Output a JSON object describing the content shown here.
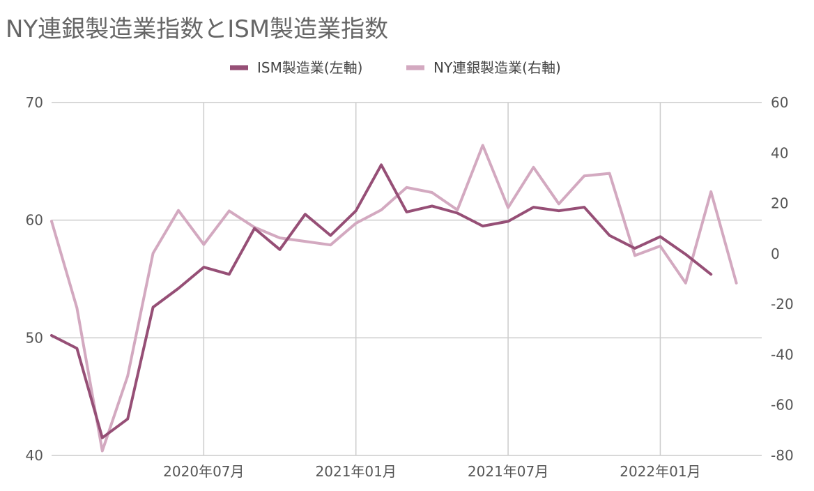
{
  "chart_data": {
    "type": "line",
    "title": "NY連銀製造業指数とISM製造業指数",
    "x_tick_labels": [
      "2020年07月",
      "2021年01月",
      "2021年07月",
      "2022年01月"
    ],
    "x_months": [
      "2020-01",
      "2020-02",
      "2020-03",
      "2020-04",
      "2020-05",
      "2020-06",
      "2020-07",
      "2020-08",
      "2020-09",
      "2020-10",
      "2020-11",
      "2020-12",
      "2021-01",
      "2021-02",
      "2021-03",
      "2021-04",
      "2021-05",
      "2021-06",
      "2021-07",
      "2021-08",
      "2021-09",
      "2021-10",
      "2021-11",
      "2021-12",
      "2022-01",
      "2022-02",
      "2022-03",
      "2022-04",
      "2022-05"
    ],
    "y_left": {
      "ticks": [
        "70",
        "60",
        "50",
        "40"
      ],
      "range": [
        40,
        70
      ]
    },
    "y_right": {
      "ticks": [
        "60",
        "40",
        "20",
        "0",
        "-20",
        "-40",
        "-60",
        "-80"
      ],
      "range": [
        -80,
        60
      ]
    },
    "legend_position": "top",
    "grid": true,
    "series": [
      {
        "name": "ISM製造業(左軸)",
        "axis": "left",
        "color": "#964F76",
        "values": [
          50.2,
          49.1,
          41.5,
          43.1,
          52.6,
          54.2,
          56.0,
          55.4,
          59.3,
          57.5,
          60.5,
          58.7,
          60.8,
          64.7,
          60.7,
          61.2,
          60.6,
          59.5,
          59.9,
          61.1,
          60.8,
          61.1,
          58.7,
          57.6,
          58.6,
          57.1,
          55.4,
          null,
          null
        ]
      },
      {
        "name": "NY連銀製造業(右軸)",
        "axis": "right",
        "color": "#D3A9C0",
        "values": [
          12.9,
          -21.5,
          -78.2,
          -48.5,
          0.2,
          17.2,
          3.7,
          17.0,
          10.5,
          6.3,
          4.9,
          3.5,
          12.1,
          17.4,
          26.3,
          24.3,
          17.4,
          43.0,
          18.3,
          34.3,
          19.8,
          30.9,
          31.9,
          -0.7,
          3.1,
          -11.6,
          24.6,
          -11.6,
          null
        ]
      }
    ]
  }
}
